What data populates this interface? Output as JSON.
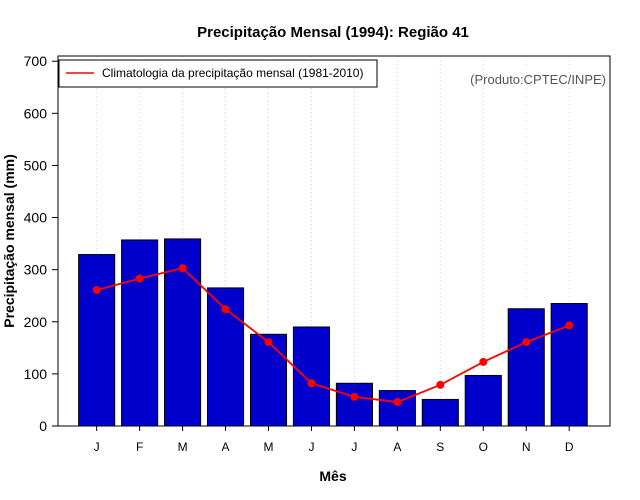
{
  "chart_data": {
    "type": "bar",
    "title": "Precipitação Mensal (1994): Região 41",
    "xlabel": "Mês",
    "ylabel": "Precipitação mensal (mm)",
    "ylim": [
      0,
      710
    ],
    "yticks": [
      0,
      100,
      200,
      300,
      400,
      500,
      600,
      700
    ],
    "categories": [
      "J",
      "F",
      "M",
      "A",
      "M",
      "J",
      "J",
      "A",
      "S",
      "O",
      "N",
      "D"
    ],
    "series": [
      {
        "name": "Precipitação mensal 1994",
        "type": "bar",
        "color": "#0000cd",
        "values": [
          329,
          357,
          359,
          265,
          176,
          190,
          82,
          68,
          51,
          97,
          225,
          235
        ]
      },
      {
        "name": "Climatologia da precipitação mensal (1981-2010)",
        "type": "line",
        "color": "#ff0000",
        "values": [
          261,
          283,
          303,
          224,
          161,
          82,
          56,
          46,
          79,
          123,
          161,
          193
        ]
      }
    ],
    "legend": {
      "position": "top-left",
      "entries": [
        "Climatologia da precipitação mensal (1981-2010)"
      ]
    },
    "annotations": [
      "(Produto:CPTEC/INPE)"
    ],
    "grid": "vertical dotted"
  }
}
